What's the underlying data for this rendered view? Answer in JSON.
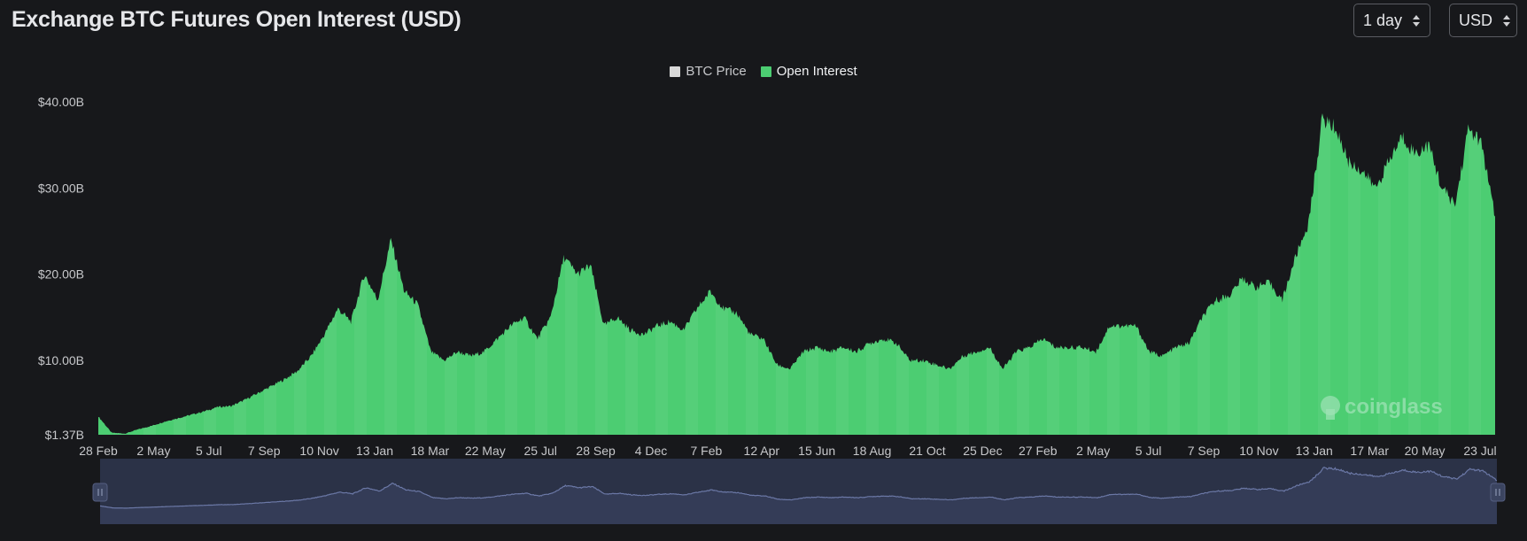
{
  "header": {
    "title": "Exchange BTC Futures Open Interest (USD)",
    "interval_select": "1 day",
    "currency_select": "USD"
  },
  "legend": [
    {
      "label": "BTC Price",
      "color": "#d9d9d9"
    },
    {
      "label": "Open Interest",
      "color": "#4ccd72"
    }
  ],
  "watermark": "coinglass",
  "colors": {
    "background": "#17181b",
    "open_interest": "#4ccd72",
    "navigator_fill": "#2b3247",
    "navigator_line": "#6b78a6"
  },
  "chart_data": {
    "type": "area",
    "series": [
      {
        "name": "Open Interest",
        "unit": "USD billions",
        "values": [
          3.5,
          1.6,
          1.5,
          2.0,
          2.4,
          2.9,
          3.3,
          3.7,
          4.1,
          4.6,
          4.7,
          5.4,
          6.2,
          7.0,
          7.8,
          8.8,
          10.5,
          13.0,
          16.0,
          14.5,
          20.0,
          17.0,
          24.0,
          18.0,
          16.5,
          11.0,
          10.0,
          11.0,
          10.5,
          11.0,
          12.5,
          14.0,
          15.0,
          12.5,
          15.0,
          22.0,
          20.0,
          21.0,
          14.0,
          15.0,
          13.5,
          13.0,
          14.0,
          14.5,
          13.5,
          16.0,
          18.0,
          16.0,
          15.5,
          13.0,
          12.5,
          9.5,
          9.0,
          11.0,
          11.5,
          11.0,
          11.5,
          11.0,
          12.0,
          12.5,
          12.0,
          10.0,
          10.0,
          9.5,
          9.0,
          10.5,
          11.0,
          11.5,
          9.0,
          11.0,
          11.5,
          12.5,
          11.5,
          11.5,
          11.5,
          11.0,
          14.0,
          14.0,
          14.0,
          11.0,
          10.5,
          11.5,
          12.0,
          15.0,
          17.0,
          17.5,
          19.5,
          18.5,
          19.0,
          17.0,
          22.0,
          26.0,
          38.0,
          37.0,
          33.0,
          32.0,
          30.0,
          33.0,
          36.0,
          34.0,
          35.0,
          30.0,
          28.0,
          37.0,
          35.0,
          26.5
        ]
      },
      {
        "name": "BTC Price",
        "unit": "relative",
        "values": []
      }
    ],
    "x_ticks": [
      "28 Feb",
      "2 May",
      "5 Jul",
      "7 Sep",
      "10 Nov",
      "13 Jan",
      "18 Mar",
      "22 May",
      "25 Jul",
      "28 Sep",
      "4 Dec",
      "7 Feb",
      "12 Apr",
      "15 Jun",
      "18 Aug",
      "21 Oct",
      "25 Dec",
      "27 Feb",
      "2 May",
      "5 Jul",
      "7 Sep",
      "10 Nov",
      "13 Jan",
      "17 Mar",
      "20 May",
      "23 Jul"
    ],
    "y_ticks": [
      {
        "label": "$40.00B",
        "value": 40
      },
      {
        "label": "$30.00B",
        "value": 30
      },
      {
        "label": "$20.00B",
        "value": 20
      },
      {
        "label": "$10.00B",
        "value": 10
      },
      {
        "label": "$1.37B",
        "value": 1.37
      }
    ],
    "ylim": [
      1.37,
      40
    ],
    "grid": false,
    "legend_position": "top-center"
  }
}
